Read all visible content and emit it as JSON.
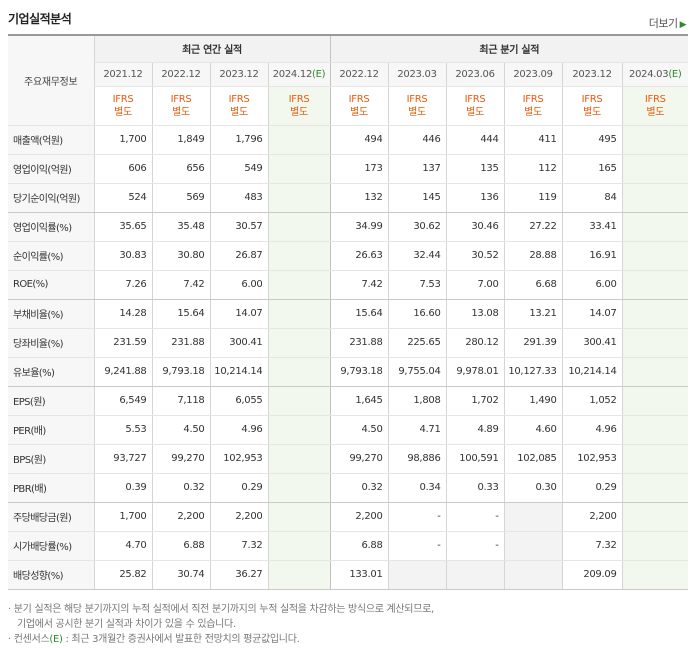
{
  "title": "기업실적분석",
  "more_label": "더보기",
  "more_icon": "chevron-right-icon",
  "header": {
    "row_label": "주요재무정보",
    "annual_group": "최근 연간 실적",
    "quarter_group": "최근 분기 실적",
    "annual_periods": [
      "2021.12",
      "2022.12",
      "2023.12",
      "2024.12"
    ],
    "quarter_periods": [
      "2022.12",
      "2023.03",
      "2023.06",
      "2023.09",
      "2023.12",
      "2024.03"
    ],
    "estimate_mark": "(E)",
    "ifrs_line1": "IFRS",
    "ifrs_line2": "별도"
  },
  "rows": [
    {
      "label": "매출액(억원)",
      "annual": [
        "1,700",
        "1,849",
        "1,796",
        ""
      ],
      "quarter": [
        "494",
        "446",
        "444",
        "411",
        "495",
        ""
      ]
    },
    {
      "label": "영업이익(억원)",
      "annual": [
        "606",
        "656",
        "549",
        ""
      ],
      "quarter": [
        "173",
        "137",
        "135",
        "112",
        "165",
        ""
      ]
    },
    {
      "label": "당기순이익(억원)",
      "annual": [
        "524",
        "569",
        "483",
        ""
      ],
      "quarter": [
        "132",
        "145",
        "136",
        "119",
        "84",
        ""
      ]
    },
    {
      "label": "영업이익률(%)",
      "annual": [
        "35.65",
        "35.48",
        "30.57",
        ""
      ],
      "quarter": [
        "34.99",
        "30.62",
        "30.46",
        "27.22",
        "33.41",
        ""
      ]
    },
    {
      "label": "순이익률(%)",
      "annual": [
        "30.83",
        "30.80",
        "26.87",
        ""
      ],
      "quarter": [
        "26.63",
        "32.44",
        "30.52",
        "28.88",
        "16.91",
        ""
      ]
    },
    {
      "label": "ROE(%)",
      "annual": [
        "7.26",
        "7.42",
        "6.00",
        ""
      ],
      "quarter": [
        "7.42",
        "7.53",
        "7.00",
        "6.68",
        "6.00",
        ""
      ]
    },
    {
      "label": "부채비율(%)",
      "annual": [
        "14.28",
        "15.64",
        "14.07",
        ""
      ],
      "quarter": [
        "15.64",
        "16.60",
        "13.08",
        "13.21",
        "14.07",
        ""
      ]
    },
    {
      "label": "당좌비율(%)",
      "annual": [
        "231.59",
        "231.88",
        "300.41",
        ""
      ],
      "quarter": [
        "231.88",
        "225.65",
        "280.12",
        "291.39",
        "300.41",
        ""
      ]
    },
    {
      "label": "유보율(%)",
      "annual": [
        "9,241.88",
        "9,793.18",
        "10,214.14",
        ""
      ],
      "quarter": [
        "9,793.18",
        "9,755.04",
        "9,978.01",
        "10,127.33",
        "10,214.14",
        ""
      ]
    },
    {
      "label": "EPS(원)",
      "annual": [
        "6,549",
        "7,118",
        "6,055",
        ""
      ],
      "quarter": [
        "1,645",
        "1,808",
        "1,702",
        "1,490",
        "1,052",
        ""
      ]
    },
    {
      "label": "PER(배)",
      "annual": [
        "5.53",
        "4.50",
        "4.96",
        ""
      ],
      "quarter": [
        "4.50",
        "4.71",
        "4.89",
        "4.60",
        "4.96",
        ""
      ]
    },
    {
      "label": "BPS(원)",
      "annual": [
        "93,727",
        "99,270",
        "102,953",
        ""
      ],
      "quarter": [
        "99,270",
        "98,886",
        "100,591",
        "102,085",
        "102,953",
        ""
      ]
    },
    {
      "label": "PBR(배)",
      "annual": [
        "0.39",
        "0.32",
        "0.29",
        ""
      ],
      "quarter": [
        "0.32",
        "0.34",
        "0.33",
        "0.30",
        "0.29",
        ""
      ]
    },
    {
      "label": "주당배당금(원)",
      "annual": [
        "1,700",
        "2,200",
        "2,200",
        ""
      ],
      "quarter": [
        "2,200",
        "-",
        "-",
        "",
        "2,200",
        ""
      ]
    },
    {
      "label": "시가배당률(%)",
      "annual": [
        "4.70",
        "6.88",
        "7.32",
        ""
      ],
      "quarter": [
        "6.88",
        "-",
        "-",
        "",
        "7.32",
        ""
      ]
    },
    {
      "label": "배당성향(%)",
      "annual": [
        "25.82",
        "30.74",
        "36.27",
        ""
      ],
      "quarter": [
        "133.01",
        "",
        "",
        "",
        "209.09",
        ""
      ]
    }
  ],
  "notes": {
    "line1": "분기 실적은 해당 분기까지의 누적 실적에서 직전 분기까지의 누적 실적을 차감하는 방식으로 계산되므로,",
    "line2": "기업에서 공시한 분기 실적과 차이가 있을 수 있습니다.",
    "line3_prefix": "컨센서스",
    "line3_mark": "(E)",
    "line3_suffix": " : 최근 3개월간 증권사에서 발표한 전망치의 평균값입니다."
  },
  "colors": {
    "ifrs": "#e85c0e",
    "estimate": "#2a8b2a",
    "estimate_bg": "#f3f8ef"
  }
}
